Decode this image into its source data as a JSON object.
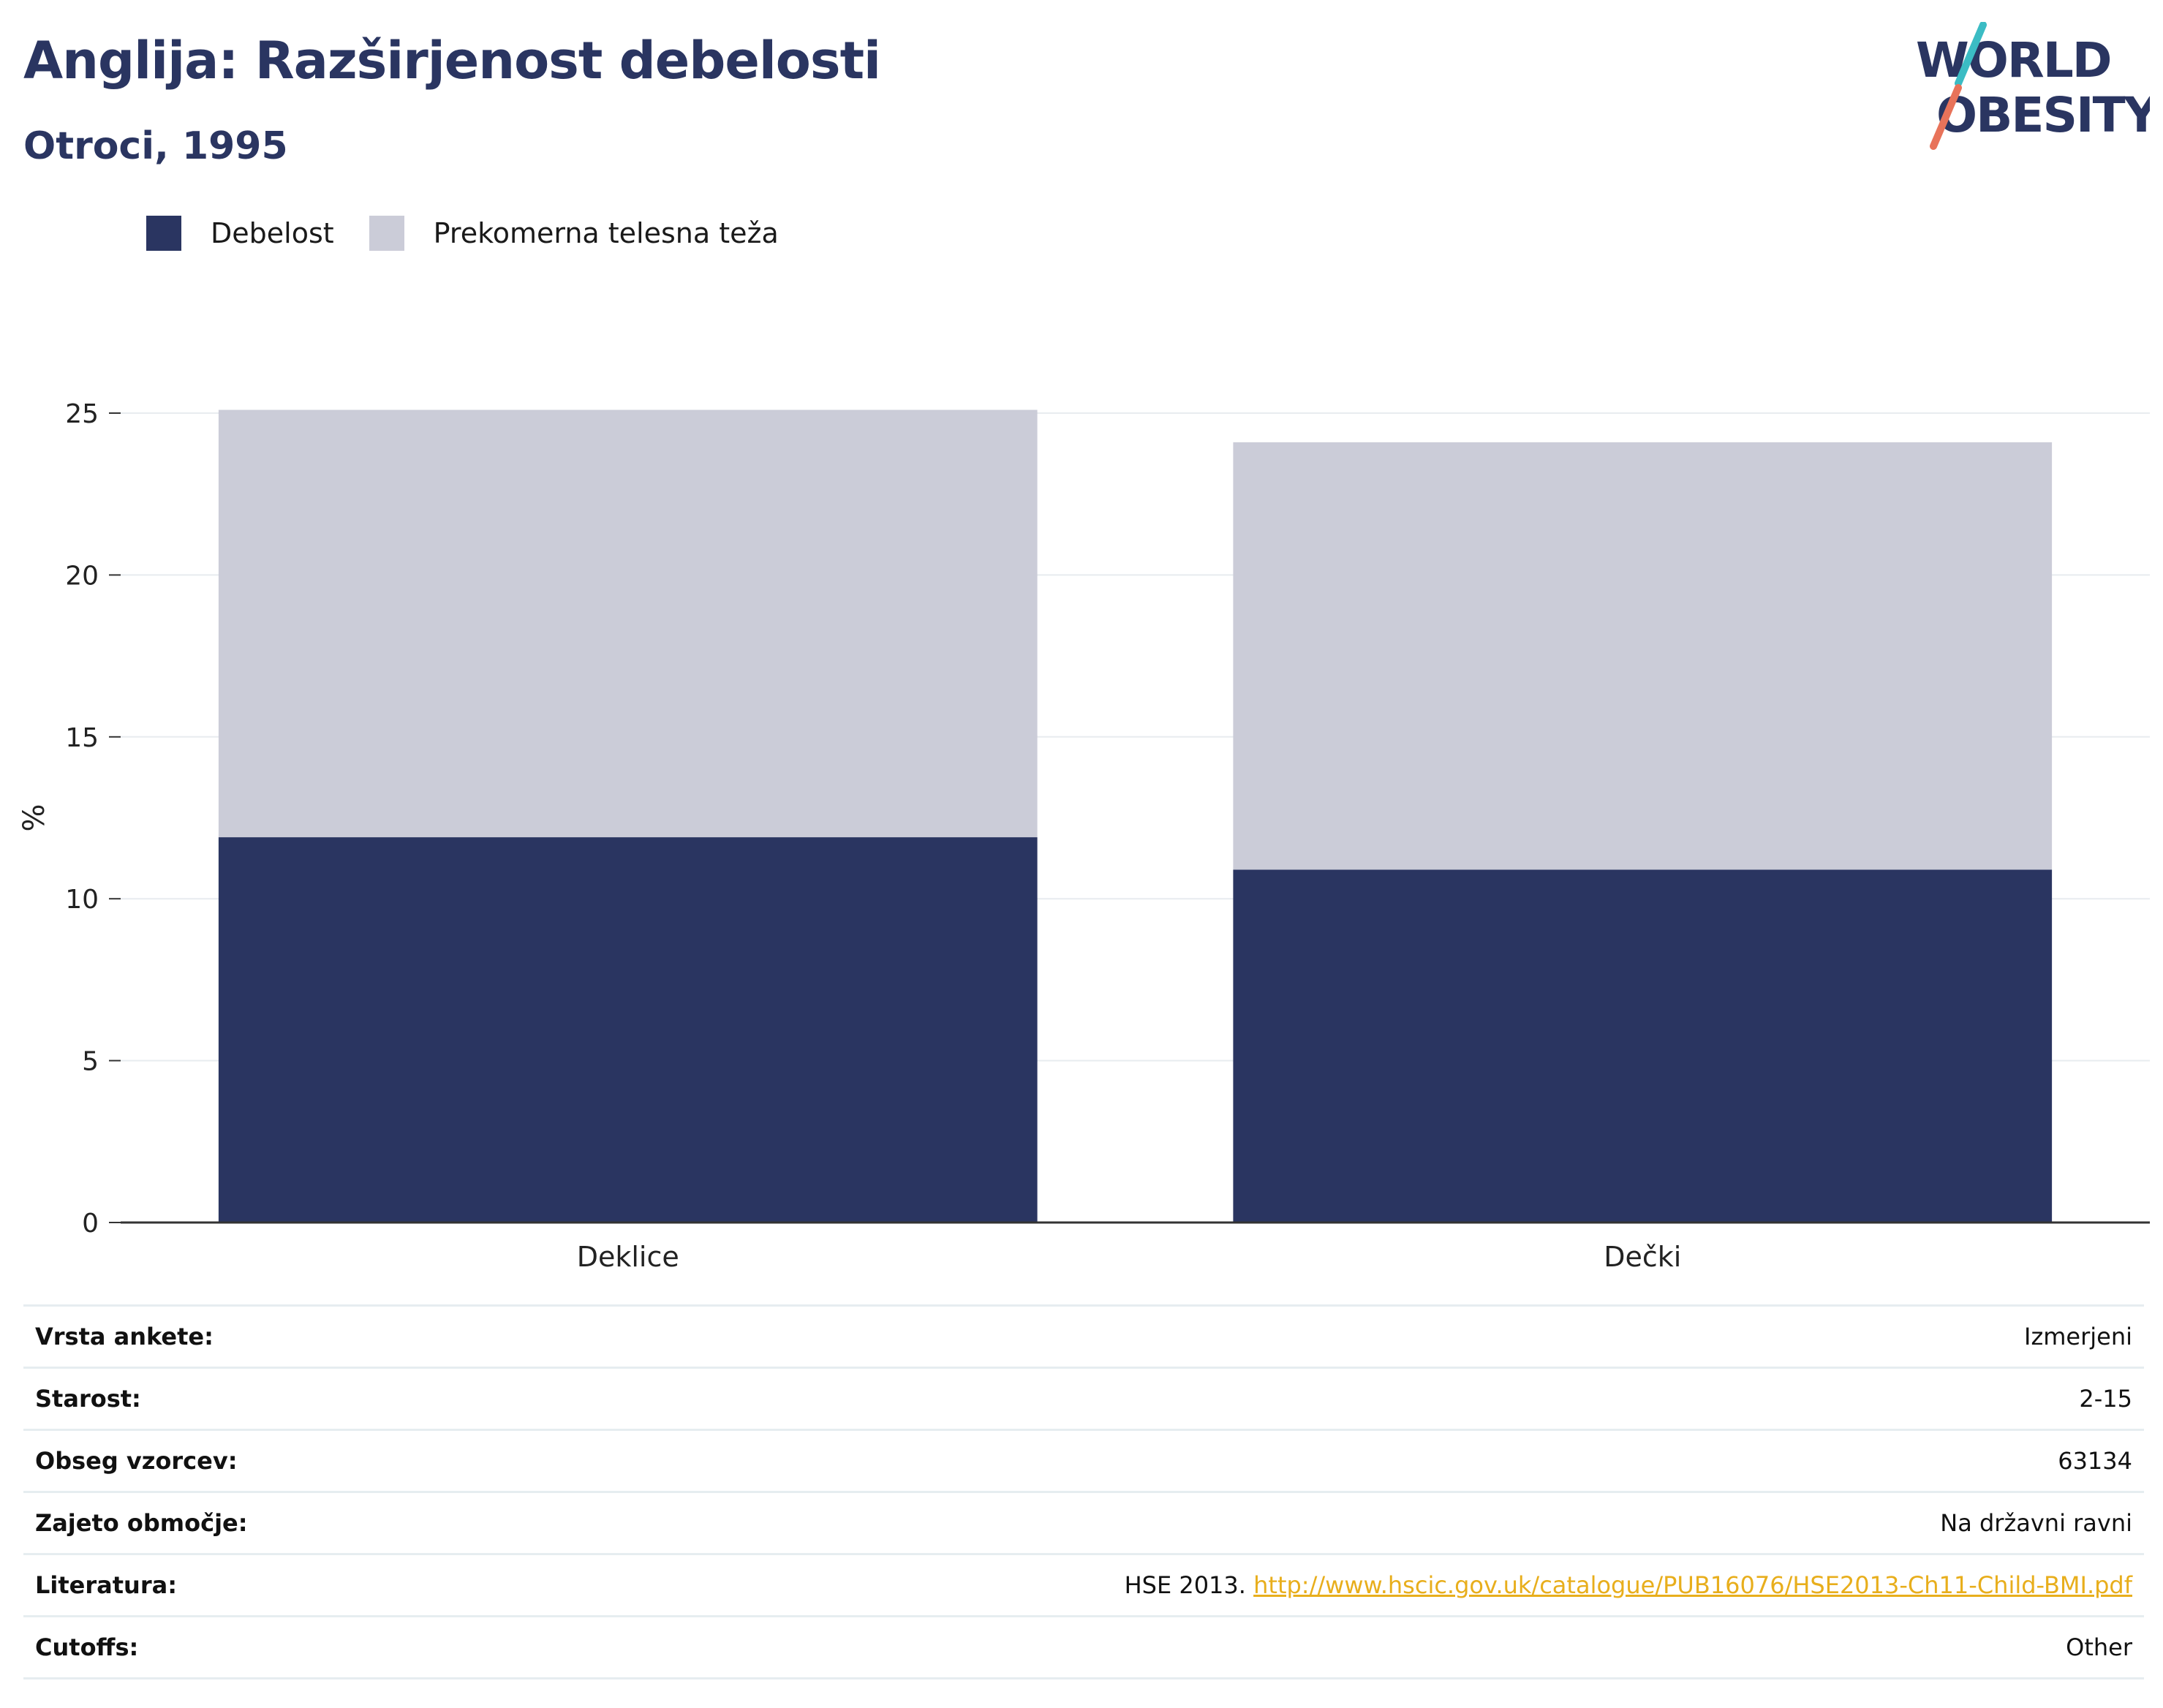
{
  "header": {
    "title": "Anglija: Razširjenost debelosti",
    "subtitle": "Otroci, 1995"
  },
  "logo": {
    "line1": "WORLD",
    "line2": "OBESITY",
    "colors": {
      "text": "#2a3561",
      "slash_top": "#3bbcc4",
      "slash_bottom": "#e8735a"
    }
  },
  "legend": [
    {
      "label": "Debelost",
      "color": "#2a3561"
    },
    {
      "label": "Prekomerna telesna teža",
      "color": "#cbccd8"
    }
  ],
  "chart_data": {
    "type": "bar",
    "stacked": true,
    "categories": [
      "Deklice",
      "Dečki"
    ],
    "series": [
      {
        "name": "Debelost",
        "values": [
          11.9,
          10.9
        ],
        "color": "#2a3561"
      },
      {
        "name": "Prekomerna telesna teža",
        "values": [
          13.2,
          13.2
        ],
        "color": "#cbccd8"
      }
    ],
    "ylabel": "%",
    "ylim": [
      0,
      25
    ],
    "yticks": [
      0,
      5,
      10,
      15,
      20,
      25
    ],
    "grid": true,
    "legend_position": "top-left"
  },
  "meta": [
    {
      "key": "Vrsta ankete:",
      "value": "Izmerjeni"
    },
    {
      "key": "Starost:",
      "value": "2-15"
    },
    {
      "key": "Obseg vzorcev:",
      "value": "63134"
    },
    {
      "key": "Zajeto območje:",
      "value": "Na državni ravni"
    },
    {
      "key": "Literatura:",
      "value": "HSE 2013. ",
      "link": "http://www.hscic.gov.uk/catalogue/PUB16076/HSE2013-Ch11-Child-BMI.pdf"
    },
    {
      "key": "Cutoffs:",
      "value": "Other"
    }
  ]
}
